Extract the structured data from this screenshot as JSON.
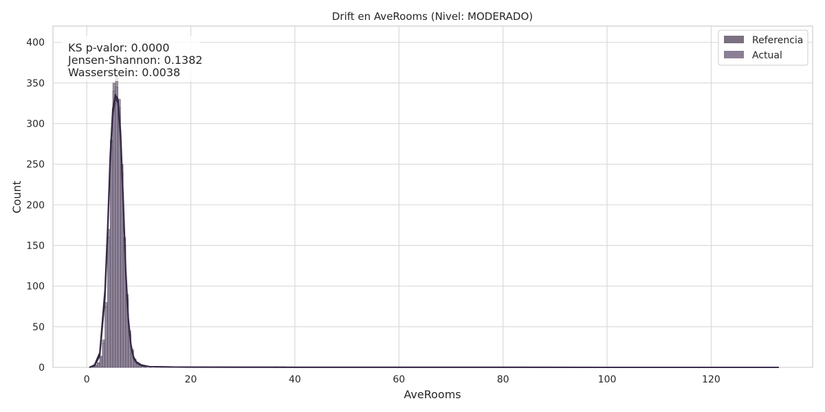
{
  "chart_data": {
    "type": "histogram",
    "title": "Drift en AveRooms (Nivel: MODERADO)",
    "xlabel": "AveRooms",
    "ylabel": "Count",
    "xlim": [
      -6.5,
      139.5
    ],
    "ylim": [
      0,
      420
    ],
    "xticks": [
      0,
      20,
      40,
      60,
      80,
      100,
      120
    ],
    "yticks": [
      0,
      50,
      100,
      150,
      200,
      250,
      300,
      350,
      400
    ],
    "grid": true,
    "legend_position": "top-right",
    "stats_annotation": {
      "lines": [
        "KS p-valor: 0.0000",
        "Jensen-Shannon: 0.1382",
        "Wasserstein: 0.0038"
      ],
      "position": "top-left"
    },
    "series": [
      {
        "name": "Referencia",
        "color": "#7a7080",
        "bin_width": 0.5,
        "bins": [
          [
            1.0,
            1
          ],
          [
            1.5,
            3
          ],
          [
            2.0,
            6
          ],
          [
            2.5,
            14
          ],
          [
            3.0,
            34
          ],
          [
            3.5,
            80
          ],
          [
            4.0,
            170
          ],
          [
            4.5,
            280
          ],
          [
            5.0,
            350
          ],
          [
            5.5,
            360
          ],
          [
            6.0,
            330
          ],
          [
            6.5,
            250
          ],
          [
            7.0,
            160
          ],
          [
            7.5,
            90
          ],
          [
            8.0,
            45
          ],
          [
            8.5,
            22
          ],
          [
            9.0,
            10
          ],
          [
            9.5,
            6
          ],
          [
            10.0,
            3
          ],
          [
            10.5,
            2
          ],
          [
            11.0,
            1
          ],
          [
            12.0,
            1
          ],
          [
            14.0,
            1
          ],
          [
            16.0,
            1
          ],
          [
            18.5,
            1
          ],
          [
            22.0,
            1
          ],
          [
            25.0,
            1
          ],
          [
            36.0,
            1
          ]
        ],
        "kde": [
          [
            0.5,
            0
          ],
          [
            1.5,
            3
          ],
          [
            2.5,
            18
          ],
          [
            3.5,
            95
          ],
          [
            4.0,
            170
          ],
          [
            4.5,
            260
          ],
          [
            5.0,
            318
          ],
          [
            5.5,
            335
          ],
          [
            6.0,
            330
          ],
          [
            6.5,
            290
          ],
          [
            7.0,
            210
          ],
          [
            7.5,
            120
          ],
          [
            8.0,
            60
          ],
          [
            8.5,
            28
          ],
          [
            9.0,
            13
          ],
          [
            9.5,
            7
          ],
          [
            10.5,
            3
          ],
          [
            12.0,
            1
          ],
          [
            16.0,
            0.5
          ],
          [
            20.0,
            0.3
          ],
          [
            30.0,
            0.2
          ],
          [
            40.0,
            0.1
          ],
          [
            133.0,
            0
          ]
        ]
      },
      {
        "name": "Actual",
        "color": "#8b7f96",
        "bin_width": 0.5,
        "bins": [
          [
            1.0,
            1
          ],
          [
            1.5,
            2
          ],
          [
            2.0,
            5
          ],
          [
            2.5,
            12
          ],
          [
            3.0,
            30
          ],
          [
            3.5,
            75
          ],
          [
            4.0,
            160
          ],
          [
            4.5,
            270
          ],
          [
            5.0,
            340
          ],
          [
            5.5,
            345
          ],
          [
            6.0,
            320
          ],
          [
            6.5,
            240
          ],
          [
            7.0,
            150
          ],
          [
            7.5,
            85
          ],
          [
            8.0,
            40
          ],
          [
            8.5,
            20
          ],
          [
            9.0,
            9
          ],
          [
            9.5,
            5
          ],
          [
            10.0,
            3
          ],
          [
            11.0,
            1
          ],
          [
            13.0,
            1
          ],
          [
            17.0,
            1
          ],
          [
            19.0,
            1
          ],
          [
            23.0,
            1
          ],
          [
            27.0,
            1
          ],
          [
            37.5,
            1
          ]
        ],
        "kde": [
          [
            0.5,
            0
          ],
          [
            1.5,
            2
          ],
          [
            2.5,
            14
          ],
          [
            3.5,
            85
          ],
          [
            4.0,
            160
          ],
          [
            4.5,
            250
          ],
          [
            5.0,
            310
          ],
          [
            5.5,
            332
          ],
          [
            6.0,
            325
          ],
          [
            6.5,
            280
          ],
          [
            7.0,
            200
          ],
          [
            7.5,
            112
          ],
          [
            8.0,
            55
          ],
          [
            8.5,
            25
          ],
          [
            9.0,
            11
          ],
          [
            9.5,
            6
          ],
          [
            10.5,
            2
          ],
          [
            12.0,
            1
          ],
          [
            16.0,
            0.5
          ],
          [
            20.0,
            0.3
          ],
          [
            30.0,
            0.2
          ],
          [
            40.0,
            0.1
          ],
          [
            133.0,
            0
          ]
        ]
      }
    ]
  }
}
